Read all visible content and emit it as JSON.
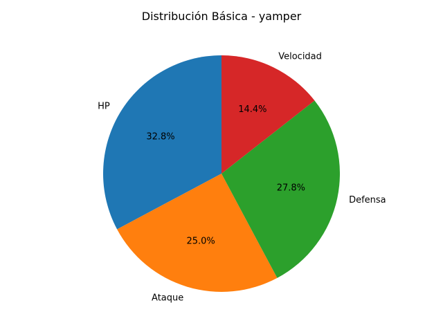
{
  "chart_data": {
    "type": "pie",
    "title": "Distribución Básica - yamper",
    "labels": [
      "HP",
      "Ataque",
      "Defensa",
      "Velocidad"
    ],
    "values": [
      32.8,
      25.0,
      27.8,
      14.4
    ],
    "percent_labels": [
      "32.8%",
      "25.0%",
      "27.8%",
      "14.4%"
    ],
    "colors": [
      "#1f77b4",
      "#ff7f0e",
      "#2ca02c",
      "#d62728"
    ],
    "start_angle_deg": 90,
    "direction": "counterclockwise"
  }
}
